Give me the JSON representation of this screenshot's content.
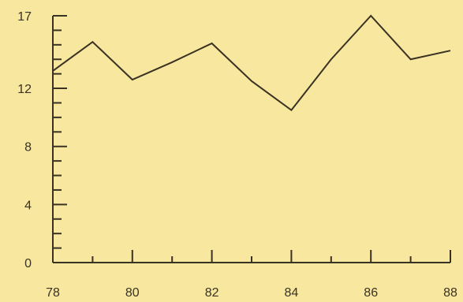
{
  "chart_data": {
    "type": "line",
    "title": "",
    "xlabel": "",
    "ylabel": "",
    "x": [
      78,
      79,
      80,
      81,
      82,
      83,
      84,
      85,
      86,
      87,
      88
    ],
    "series": [
      {
        "values": [
          13.2,
          15.2,
          12.6,
          13.8,
          15.1,
          12.5,
          10.5,
          14.0,
          17.0,
          14.0,
          14.6
        ]
      }
    ],
    "xlim": [
      78,
      88
    ],
    "ylim": [
      0,
      17
    ],
    "x_tick_labels": [
      "78",
      "80",
      "82",
      "84",
      "86",
      "88"
    ],
    "x_tick_values": [
      78,
      80,
      82,
      84,
      86,
      88
    ],
    "x_minor_ticks": [
      79,
      81,
      83,
      85,
      87
    ],
    "y_tick_labels": [
      "0",
      "4",
      "8",
      "12",
      "17"
    ],
    "y_tick_values": [
      0,
      4,
      8,
      12,
      17
    ],
    "y_minor_step": 1,
    "grid": false,
    "legend": "none",
    "colors": {
      "background": "#f7e79f",
      "ink": "#3a3222"
    }
  }
}
